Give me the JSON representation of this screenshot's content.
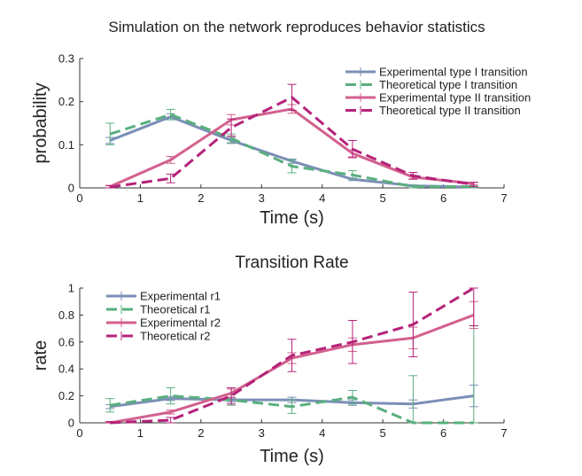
{
  "figure_title": "Simulation on the network reproduces behavior statistics",
  "colors": {
    "exp_type1": "#7b8fb6",
    "theo_type1": "#5aaf7f",
    "exp_type2": "#d3608e",
    "theo_type2": "#b5237a",
    "axis": "#333333"
  },
  "chart_data": [
    {
      "type": "line",
      "title": "",
      "xlabel": "Time (s)",
      "ylabel": "probability",
      "xlim": [
        0,
        7
      ],
      "ylim": [
        0,
        0.3
      ],
      "xticks": [
        0,
        1,
        2,
        3,
        4,
        5,
        6,
        7
      ],
      "xtick_labels": [
        "0",
        "1",
        "2",
        "3",
        "4",
        "5",
        "6",
        "7"
      ],
      "yticks": [
        0,
        0.1,
        0.2,
        0.3
      ],
      "ytick_labels": [
        "0",
        "0.1",
        "0.2",
        "0.3"
      ],
      "legend_position": "top-right",
      "series": [
        {
          "name": "Experimental type I transition",
          "color": "#7b8fb6",
          "style": "solid",
          "x": [
            0.5,
            1.5,
            2.5,
            3.5,
            4.5,
            5.5,
            6.5
          ],
          "y": [
            0.11,
            0.165,
            0.11,
            0.062,
            0.02,
            0.005,
            0.002
          ],
          "err": [
            0.007,
            0.007,
            0.007,
            0.005,
            0.003,
            0.002,
            0.001
          ]
        },
        {
          "name": "Theoretical type I transition",
          "color": "#5aaf7f",
          "style": "dashed",
          "x": [
            0.5,
            1.5,
            2.5,
            3.5,
            4.5,
            5.5,
            6.5
          ],
          "y": [
            0.125,
            0.17,
            0.115,
            0.05,
            0.03,
            0.003,
            0.003
          ],
          "err": [
            0.025,
            0.012,
            0.01,
            0.015,
            0.01,
            0.003,
            0.003
          ]
        },
        {
          "name": "Experimental type II transition",
          "color": "#d3608e",
          "style": "solid",
          "x": [
            0.5,
            1.5,
            2.5,
            3.5,
            4.5,
            5.5,
            6.5
          ],
          "y": [
            0.003,
            0.065,
            0.158,
            0.183,
            0.08,
            0.025,
            0.01
          ],
          "err": [
            0.003,
            0.008,
            0.012,
            0.01,
            0.008,
            0.004,
            0.003
          ]
        },
        {
          "name": "Theoretical  type II transition",
          "color": "#b5237a",
          "style": "dashed",
          "x": [
            0.5,
            1.5,
            2.5,
            3.5,
            4.5,
            5.5,
            6.5
          ],
          "y": [
            0.002,
            0.022,
            0.14,
            0.21,
            0.09,
            0.028,
            0.008
          ],
          "err": [
            0.003,
            0.01,
            0.02,
            0.03,
            0.02,
            0.008,
            0.005
          ]
        }
      ]
    },
    {
      "type": "line",
      "title": "Transition Rate",
      "xlabel": "Time (s)",
      "ylabel": "rate",
      "xlim": [
        0,
        7
      ],
      "ylim": [
        0,
        1
      ],
      "xticks": [
        0,
        1,
        2,
        3,
        4,
        5,
        6,
        7
      ],
      "xtick_labels": [
        "0",
        "1",
        "2",
        "3",
        "4",
        "5",
        "6",
        "7"
      ],
      "yticks": [
        0,
        0.2,
        0.4,
        0.6,
        0.8,
        1
      ],
      "ytick_labels": [
        "0",
        "0.2",
        "0.4",
        "0.6",
        "0.8",
        "1"
      ],
      "legend_position": "top-left",
      "series": [
        {
          "name": "Experimental r1",
          "color": "#7b8fb6",
          "style": "solid",
          "x": [
            0.5,
            1.5,
            2.5,
            3.5,
            4.5,
            5.5,
            6.5
          ],
          "y": [
            0.12,
            0.18,
            0.17,
            0.17,
            0.15,
            0.14,
            0.2
          ],
          "err": [
            0.015,
            0.015,
            0.015,
            0.02,
            0.02,
            0.03,
            0.08
          ]
        },
        {
          "name": "Theoretical r1",
          "color": "#5aaf7f",
          "style": "dashed",
          "x": [
            0.5,
            1.5,
            2.5,
            3.5,
            4.5,
            5.5,
            6.5
          ],
          "y": [
            0.13,
            0.2,
            0.17,
            0.12,
            0.19,
            0.0,
            0.0
          ],
          "err": [
            0.05,
            0.06,
            0.04,
            0.05,
            0.05,
            0.35,
            0.72
          ]
        },
        {
          "name": "Experimental r2",
          "color": "#d3608e",
          "style": "solid",
          "x": [
            0.5,
            1.5,
            2.5,
            3.5,
            4.5,
            5.5,
            6.5
          ],
          "y": [
            0.0,
            0.08,
            0.22,
            0.48,
            0.58,
            0.63,
            0.8
          ],
          "err": [
            0.005,
            0.015,
            0.03,
            0.04,
            0.05,
            0.08,
            0.1
          ]
        },
        {
          "name": "Theoretical r2",
          "color": "#b5237a",
          "style": "dashed",
          "x": [
            0.5,
            1.5,
            2.5,
            3.5,
            4.5,
            5.5,
            6.5
          ],
          "y": [
            0.0,
            0.02,
            0.2,
            0.5,
            0.6,
            0.73,
            1.0
          ],
          "err": [
            0.01,
            0.02,
            0.06,
            0.12,
            0.16,
            0.24,
            0.28
          ]
        }
      ]
    }
  ]
}
